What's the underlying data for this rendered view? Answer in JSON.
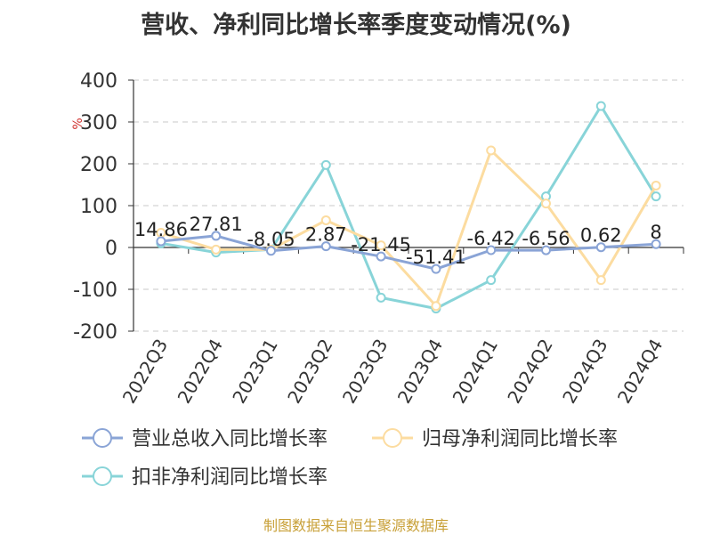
{
  "chart_data": {
    "type": "line",
    "title": "营收、净利同比增长率季度变动情况(%)",
    "ylabel": "%",
    "xlabel": "",
    "ylim": [
      -200,
      400
    ],
    "yticks": [
      -200,
      -100,
      0,
      100,
      200,
      300,
      400
    ],
    "grid": true,
    "legend_position": "bottom",
    "categories": [
      "2022Q3",
      "2022Q4",
      "2023Q1",
      "2023Q2",
      "2023Q3",
      "2023Q4",
      "2024Q1",
      "2024Q2",
      "2024Q3",
      "2024Q4"
    ],
    "series": [
      {
        "name": "营业总收入同比增长率",
        "color": "#8aa4d6",
        "values": [
          14.86,
          27.81,
          -8.05,
          2.87,
          -21.45,
          -51.41,
          -6.42,
          -6.56,
          0.62,
          8
        ],
        "data_labels": [
          "14.86",
          "27.81",
          "-8.05",
          "2.87",
          "-21.45",
          "-51.41",
          "-6.42",
          "-6.56",
          "0.62",
          "8"
        ]
      },
      {
        "name": "归母净利润同比增长率",
        "color": "#fcdca0",
        "values": [
          35,
          -5,
          -5,
          65,
          5,
          -140,
          232,
          105,
          -78,
          148
        ]
      },
      {
        "name": "扣非净利润同比增长率",
        "color": "#88d4d8",
        "values": [
          10,
          -12,
          -5,
          197,
          -120,
          -146,
          -78,
          122,
          338,
          122
        ]
      }
    ]
  },
  "footer": "制图数据来自恒生聚源数据库"
}
